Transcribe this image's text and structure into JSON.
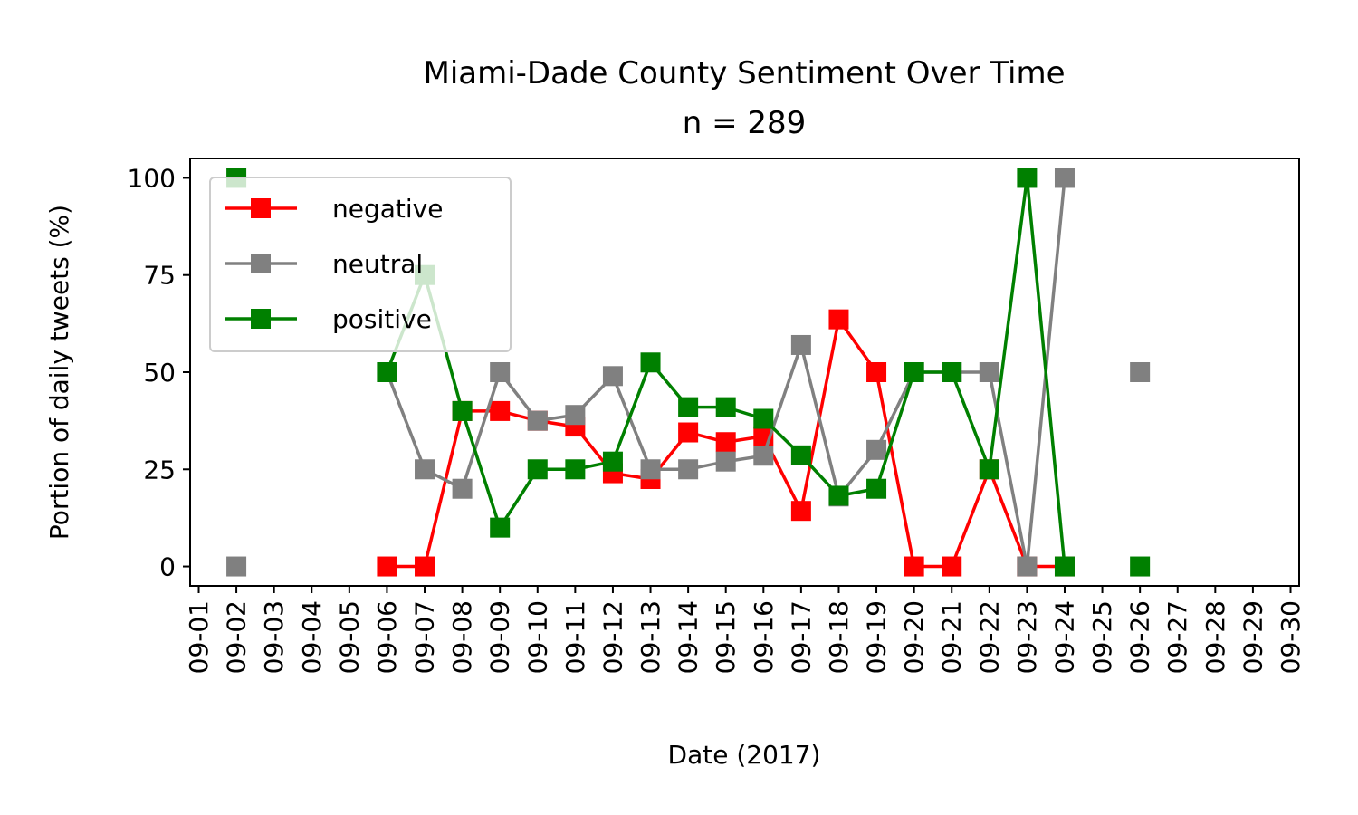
{
  "chart_data": {
    "type": "line",
    "title": "Miami-Dade County Sentiment Over Time",
    "subtitle": "n = 289",
    "xlabel": "Date (2017)",
    "ylabel": "Portion of daily tweets (%)",
    "x_ticks": [
      "09-01",
      "09-02",
      "09-03",
      "09-04",
      "09-05",
      "09-06",
      "09-07",
      "09-08",
      "09-09",
      "09-10",
      "09-11",
      "09-12",
      "09-13",
      "09-14",
      "09-15",
      "09-16",
      "09-17",
      "09-18",
      "09-19",
      "09-20",
      "09-21",
      "09-22",
      "09-23",
      "09-24",
      "09-25",
      "09-26",
      "09-27",
      "09-28",
      "09-29",
      "09-30"
    ],
    "y_ticks": [
      0,
      25,
      50,
      75,
      100
    ],
    "xlim": [
      "09-01",
      "09-30"
    ],
    "ylim": [
      -5,
      105
    ],
    "grid": false,
    "legend_position": "upper-left",
    "series": [
      {
        "name": "negative",
        "color": "#ff0000",
        "points": [
          {
            "x": "09-06",
            "y": 0
          },
          {
            "x": "09-07",
            "y": 0
          },
          {
            "x": "09-08",
            "y": 40
          },
          {
            "x": "09-09",
            "y": 40
          },
          {
            "x": "09-10",
            "y": 37.5
          },
          {
            "x": "09-11",
            "y": 36
          },
          {
            "x": "09-12",
            "y": 24
          },
          {
            "x": "09-13",
            "y": 22.5
          },
          {
            "x": "09-14",
            "y": 34.5
          },
          {
            "x": "09-15",
            "y": 32
          },
          {
            "x": "09-16",
            "y": 33.5
          },
          {
            "x": "09-17",
            "y": 14.3
          },
          {
            "x": "09-18",
            "y": 63.6
          },
          {
            "x": "09-19",
            "y": 50
          },
          {
            "x": "09-20",
            "y": 0
          },
          {
            "x": "09-21",
            "y": 0
          },
          {
            "x": "09-22",
            "y": 25
          },
          {
            "x": "09-23",
            "y": 0
          },
          {
            "x": "09-24",
            "y": 0
          }
        ]
      },
      {
        "name": "neutral",
        "color": "#808080",
        "points": [
          {
            "x": "09-02",
            "y": 0
          },
          {
            "x": "09-06",
            "y": 50
          },
          {
            "x": "09-07",
            "y": 25
          },
          {
            "x": "09-08",
            "y": 20
          },
          {
            "x": "09-09",
            "y": 50
          },
          {
            "x": "09-10",
            "y": 37.5
          },
          {
            "x": "09-11",
            "y": 39
          },
          {
            "x": "09-12",
            "y": 49
          },
          {
            "x": "09-13",
            "y": 25
          },
          {
            "x": "09-14",
            "y": 25
          },
          {
            "x": "09-15",
            "y": 27
          },
          {
            "x": "09-16",
            "y": 28.5
          },
          {
            "x": "09-17",
            "y": 57
          },
          {
            "x": "09-18",
            "y": 18
          },
          {
            "x": "09-19",
            "y": 30
          },
          {
            "x": "09-20",
            "y": 50
          },
          {
            "x": "09-21",
            "y": 50
          },
          {
            "x": "09-22",
            "y": 50
          },
          {
            "x": "09-23",
            "y": 0
          },
          {
            "x": "09-24",
            "y": 100
          },
          {
            "x": "09-26",
            "y": 50
          }
        ]
      },
      {
        "name": "positive",
        "color": "#008000",
        "points": [
          {
            "x": "09-02",
            "y": 100
          },
          {
            "x": "09-06",
            "y": 50
          },
          {
            "x": "09-07",
            "y": 75
          },
          {
            "x": "09-08",
            "y": 40
          },
          {
            "x": "09-09",
            "y": 10
          },
          {
            "x": "09-10",
            "y": 25
          },
          {
            "x": "09-11",
            "y": 25
          },
          {
            "x": "09-12",
            "y": 27
          },
          {
            "x": "09-13",
            "y": 52.5
          },
          {
            "x": "09-14",
            "y": 41
          },
          {
            "x": "09-15",
            "y": 41
          },
          {
            "x": "09-16",
            "y": 38
          },
          {
            "x": "09-17",
            "y": 28.6
          },
          {
            "x": "09-18",
            "y": 18.2
          },
          {
            "x": "09-19",
            "y": 20
          },
          {
            "x": "09-20",
            "y": 50
          },
          {
            "x": "09-21",
            "y": 50
          },
          {
            "x": "09-22",
            "y": 25
          },
          {
            "x": "09-23",
            "y": 100
          },
          {
            "x": "09-24",
            "y": 0
          },
          {
            "x": "09-26",
            "y": 0
          }
        ]
      }
    ]
  }
}
